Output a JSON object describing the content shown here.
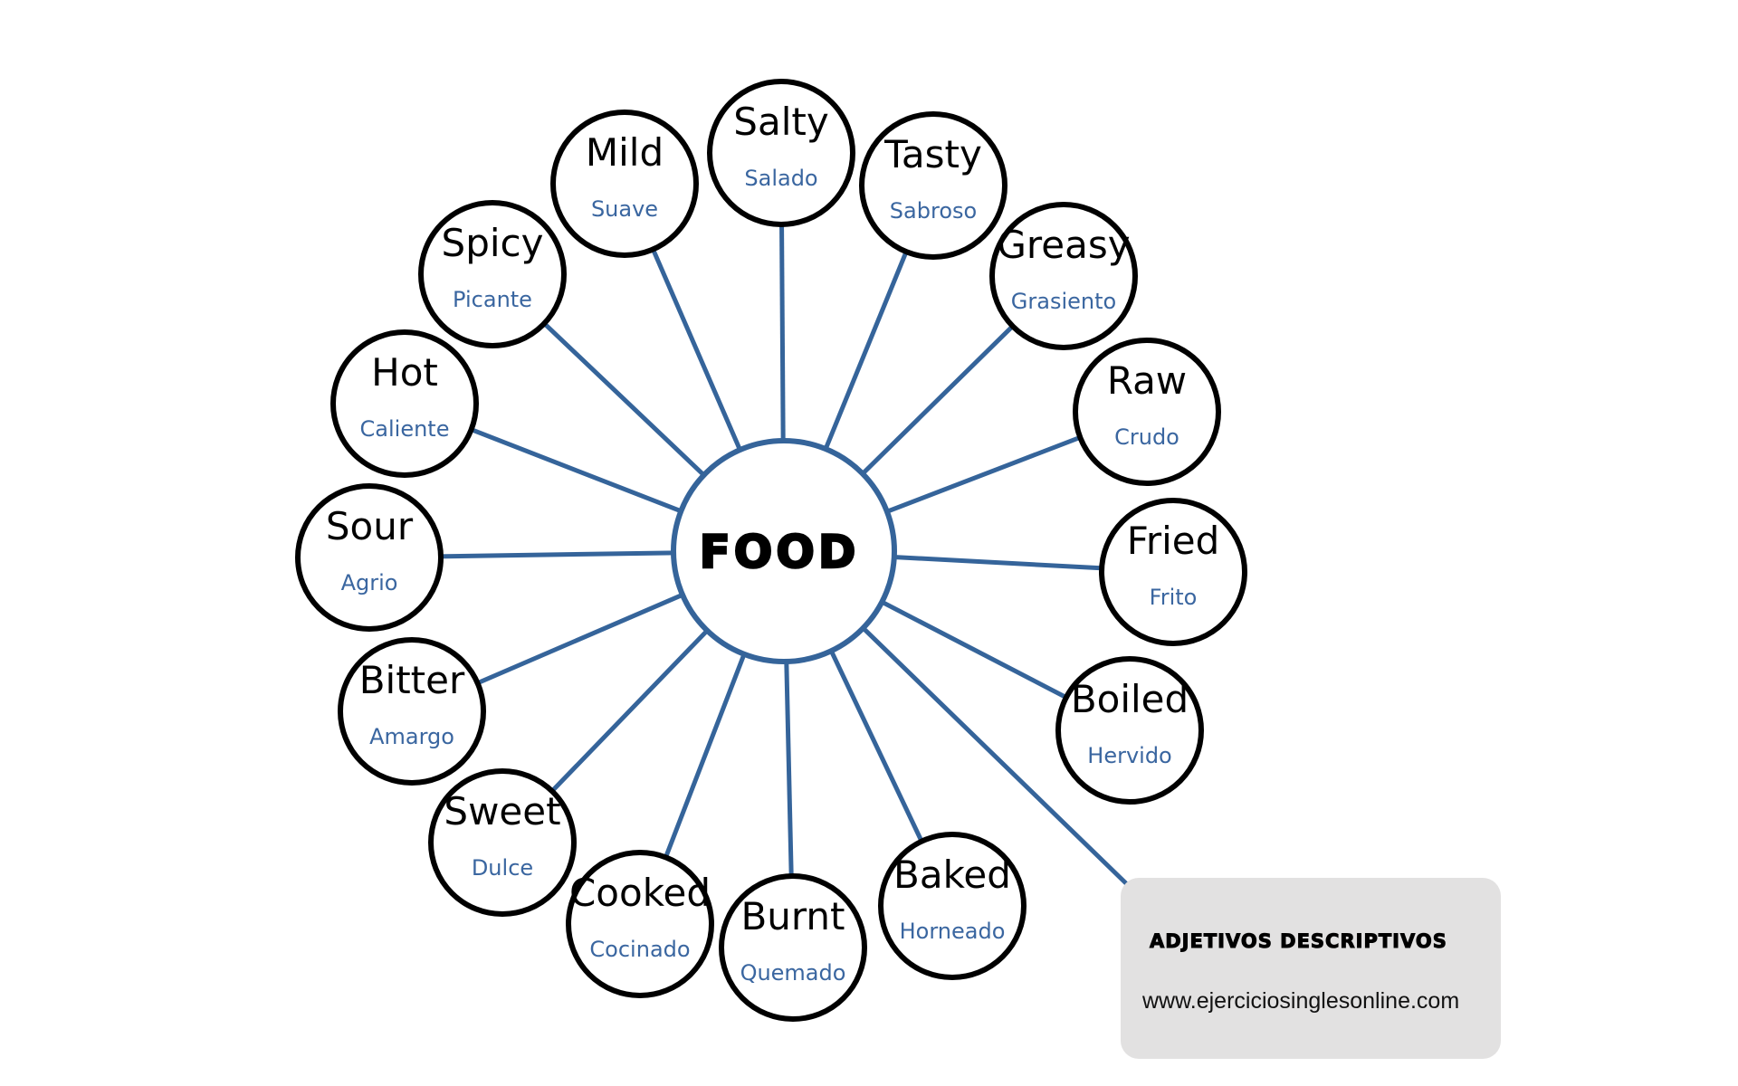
{
  "center": {
    "label": "FOOD"
  },
  "colors": {
    "spoke": "#35649a",
    "translation": "#3a66a0",
    "circle_stroke": "#000000",
    "info_box": "#e2e1e1"
  },
  "nodes": [
    {
      "en": "Salty",
      "es": "Salado"
    },
    {
      "en": "Mild",
      "es": "Suave"
    },
    {
      "en": "Tasty",
      "es": "Sabroso"
    },
    {
      "en": "Spicy",
      "es": "Picante"
    },
    {
      "en": "Greasy",
      "es": "Grasiento"
    },
    {
      "en": "Hot",
      "es": "Caliente"
    },
    {
      "en": "Raw",
      "es": "Crudo"
    },
    {
      "en": "Sour",
      "es": "Agrio"
    },
    {
      "en": "Fried",
      "es": "Frito"
    },
    {
      "en": "Bitter",
      "es": "Amargo"
    },
    {
      "en": "Boiled",
      "es": "Hervido"
    },
    {
      "en": "Sweet",
      "es": "Dulce"
    },
    {
      "en": "Baked",
      "es": "Horneado"
    },
    {
      "en": "Cooked",
      "es": "Cocinado"
    },
    {
      "en": "Burnt",
      "es": "Quemado"
    }
  ],
  "info": {
    "title": "ADJETIVOS DESCRIPTIVOS",
    "url": "www.ejerciciosinglesonline.com"
  }
}
